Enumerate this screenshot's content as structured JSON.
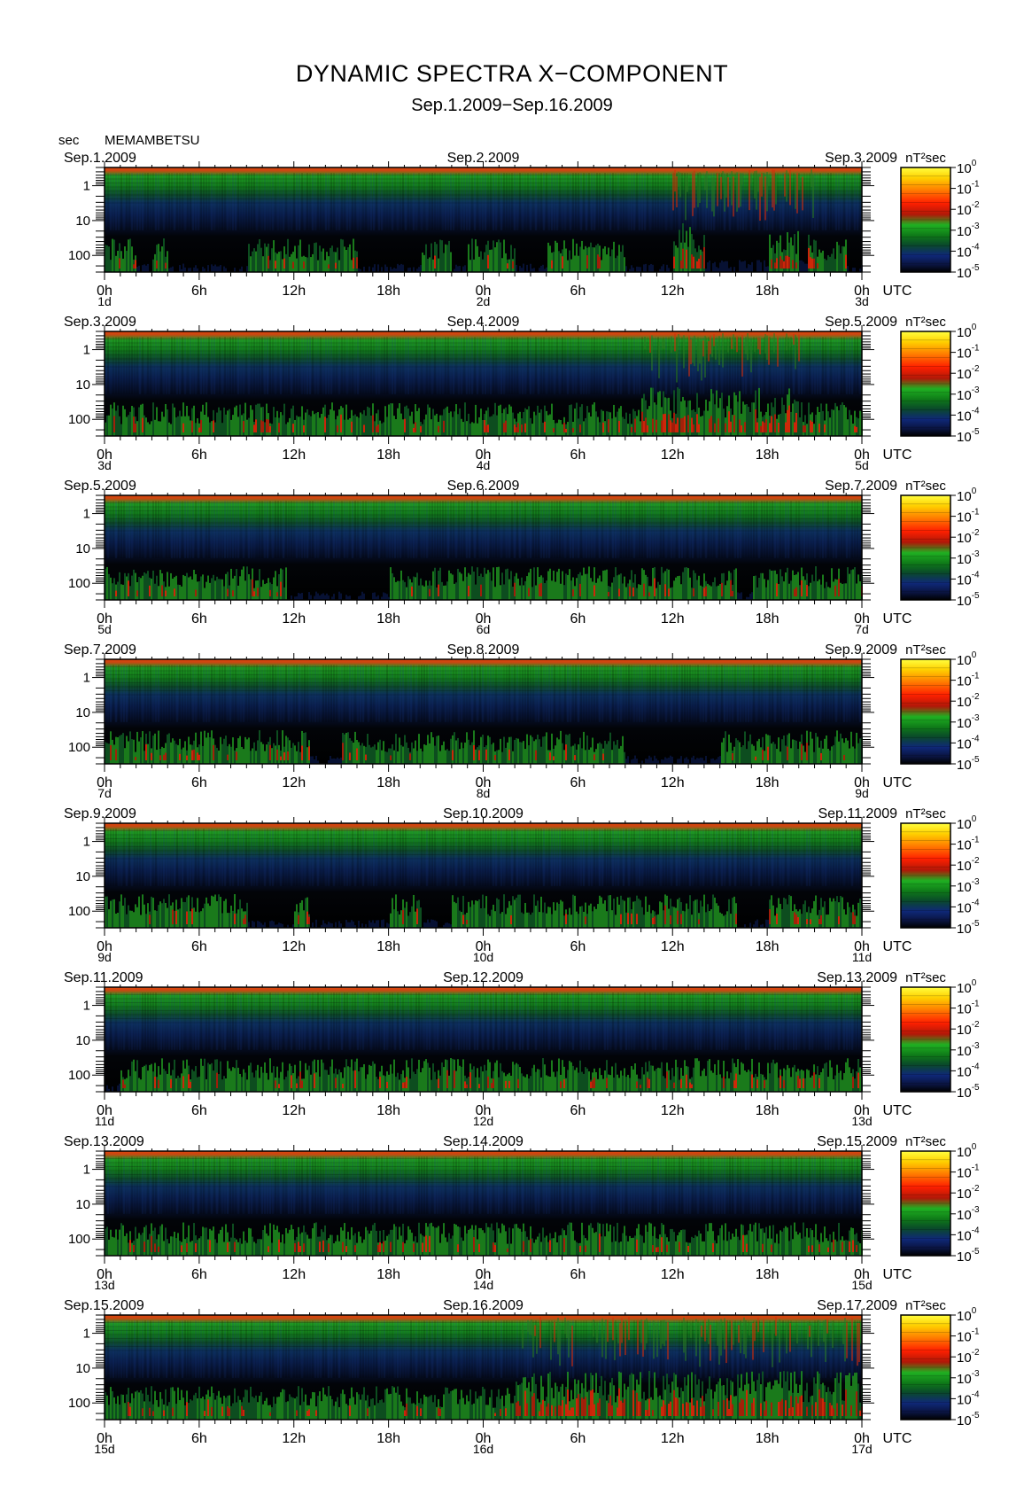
{
  "title": "DYNAMIC SPECTRA X−COMPONENT",
  "subtitle": "Sep.1.2009−Sep.16.2009",
  "y_unit_label": "sec",
  "station": "MEMAMBETSU",
  "chart_data": {
    "type": "heatmap",
    "title": "DYNAMIC SPECTRA X−COMPONENT",
    "subtitle": "Sep.1.2009−Sep.16.2009",
    "station": "MEMAMBETSU",
    "component": "X",
    "ylabel": "sec",
    "y_scale": "log",
    "y_ticks": [
      "1",
      "10",
      "100"
    ],
    "y_range_sec": [
      0.3,
      300
    ],
    "x_unit": "UTC",
    "x_ticks": [
      "0h",
      "6h",
      "12h",
      "18h",
      "0h",
      "6h",
      "12h",
      "18h",
      "0h"
    ],
    "colorbar": {
      "unit": "nT²sec",
      "scale": "log",
      "tick_base": "10",
      "tick_exponents": [
        "0",
        "-1",
        "-2",
        "-3",
        "-4",
        "-5"
      ],
      "range": [
        1e-05,
        1
      ]
    },
    "colors": [
      "#000000",
      "#0a1440",
      "#0f2878",
      "#0a4a2a",
      "#0f7a18",
      "#1fb022",
      "#c03010",
      "#ff2000",
      "#ff7a00",
      "#ffd000",
      "#ffff40"
    ],
    "panels": [
      {
        "left_date": "Sep.1.2009",
        "mid_date": "Sep.2.2009",
        "right_date": "Sep.3.2009",
        "start_day": "1d",
        "mid_day": "2d",
        "end_day": "3d",
        "active_hours": [
          [
            0,
            2
          ],
          [
            3,
            4
          ],
          [
            9,
            16
          ],
          [
            20,
            22
          ],
          [
            23,
            26
          ],
          [
            28,
            33
          ],
          [
            36,
            38
          ],
          [
            42,
            44
          ],
          [
            44.5,
            47
          ],
          [
            46,
            47
          ]
        ],
        "storm_hours": [
          [
            36,
            45
          ]
        ]
      },
      {
        "left_date": "Sep.3.2009",
        "mid_date": "Sep.4.2009",
        "right_date": "Sep.5.2009",
        "start_day": "3d",
        "mid_day": "4d",
        "end_day": "5d",
        "active_hours": [
          [
            0,
            48
          ]
        ],
        "storm_hours": [
          [
            34,
            44
          ]
        ]
      },
      {
        "left_date": "Sep.5.2009",
        "mid_date": "Sep.6.2009",
        "right_date": "Sep.7.2009",
        "start_day": "5d",
        "mid_day": "6d",
        "end_day": "7d",
        "active_hours": [
          [
            0,
            11.5
          ],
          [
            18,
            40
          ],
          [
            41,
            48
          ]
        ],
        "storm_hours": []
      },
      {
        "left_date": "Sep.7.2009",
        "mid_date": "Sep.8.2009",
        "right_date": "Sep.9.2009",
        "start_day": "7d",
        "mid_day": "8d",
        "end_day": "9d",
        "active_hours": [
          [
            0,
            13
          ],
          [
            15,
            33
          ],
          [
            39,
            48
          ]
        ],
        "storm_hours": []
      },
      {
        "left_date": "Sep.9.2009",
        "mid_date": "Sep.10.2009",
        "right_date": "Sep.11.2009",
        "start_day": "9d",
        "mid_day": "10d",
        "end_day": "11d",
        "active_hours": [
          [
            0,
            9
          ],
          [
            12,
            13
          ],
          [
            18,
            20
          ],
          [
            22,
            40
          ],
          [
            42,
            48
          ]
        ],
        "storm_hours": []
      },
      {
        "left_date": "Sep.11.2009",
        "mid_date": "Sep.12.2009",
        "right_date": "Sep.13.2009",
        "start_day": "11d",
        "mid_day": "12d",
        "end_day": "13d",
        "active_hours": [
          [
            1,
            48
          ]
        ],
        "storm_hours": []
      },
      {
        "left_date": "Sep.13.2009",
        "mid_date": "Sep.14.2009",
        "right_date": "Sep.15.2009",
        "start_day": "13d",
        "mid_day": "14d",
        "end_day": "15d",
        "active_hours": [
          [
            0,
            48
          ]
        ],
        "storm_hours": []
      },
      {
        "left_date": "Sep.15.2009",
        "mid_date": "Sep.16.2009",
        "right_date": "Sep.17.2009",
        "start_day": "15d",
        "mid_day": "16d",
        "end_day": "17d",
        "active_hours": [
          [
            0,
            48
          ]
        ],
        "storm_hours": [
          [
            26,
            48
          ]
        ]
      }
    ]
  }
}
